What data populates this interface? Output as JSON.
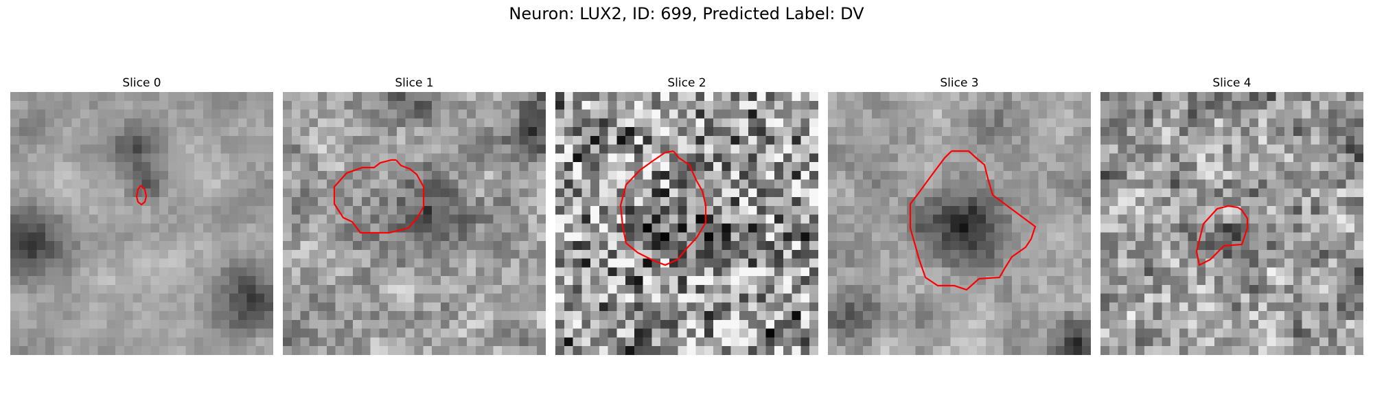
{
  "figure": {
    "title": "Neuron: LUX2, ID: 699, Predicted Label: DV"
  },
  "colors": {
    "contour": "#ff0000",
    "background": "#ffffff"
  },
  "panels": [
    {
      "label": "Slice 0"
    },
    {
      "label": "Slice 1"
    },
    {
      "label": "Slice 2"
    },
    {
      "label": "Slice 3"
    },
    {
      "label": "Slice 4"
    }
  ]
}
